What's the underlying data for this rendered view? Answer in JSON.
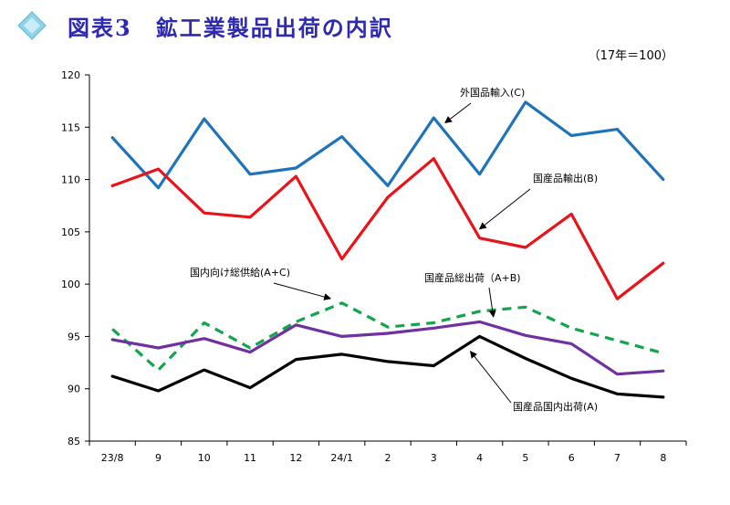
{
  "header": {
    "title": "図表3　鉱工業製品出荷の内訳",
    "unit": "（17年＝100）",
    "icon": "diamond-icon",
    "title_color": "#2e2ab0",
    "icon_color": "#8fd3ea"
  },
  "chart_data": {
    "type": "line",
    "categories": [
      "23/8",
      "9",
      "10",
      "11",
      "12",
      "24/1",
      "2",
      "3",
      "4",
      "5",
      "6",
      "7",
      "8"
    ],
    "ylim": [
      85,
      120
    ],
    "yticks": [
      85,
      90,
      95,
      100,
      105,
      110,
      115,
      120
    ],
    "grid": false,
    "series": [
      {
        "name": "外国品輸入(C)",
        "color": "#1f73b8",
        "dash": false,
        "values": [
          114.0,
          109.2,
          115.8,
          110.5,
          111.1,
          114.1,
          109.4,
          115.9,
          110.5,
          117.4,
          114.2,
          114.8,
          110.0
        ]
      },
      {
        "name": "国産品輸出(B)",
        "color": "#e8141c",
        "dash": false,
        "values": [
          109.4,
          111.0,
          106.8,
          106.4,
          110.3,
          102.4,
          108.3,
          112.0,
          104.4,
          103.5,
          106.7,
          98.6,
          102.0
        ]
      },
      {
        "name": "国内向け総供給(A+C)",
        "color": "#12a64a",
        "dash": true,
        "values": [
          95.7,
          91.8,
          96.3,
          93.9,
          96.4,
          98.2,
          95.9,
          96.3,
          97.4,
          97.8,
          95.8,
          94.6,
          93.4
        ]
      },
      {
        "name": "国産品総出荷(A+B)",
        "color": "#7030a0",
        "dash": false,
        "values": [
          94.7,
          93.9,
          94.8,
          93.5,
          96.1,
          95.0,
          95.3,
          95.8,
          96.4,
          95.1,
          94.3,
          91.4,
          91.7
        ]
      },
      {
        "name": "国産品国内出荷(A)",
        "color": "#000000",
        "dash": false,
        "values": [
          91.2,
          89.8,
          91.8,
          90.1,
          92.8,
          93.3,
          92.6,
          92.2,
          95.0,
          92.9,
          91.0,
          89.5,
          89.2
        ]
      }
    ],
    "annotations": [
      {
        "text": "外国品輸入(C)",
        "series": 0
      },
      {
        "text": "国産品輸出(B)",
        "series": 1
      },
      {
        "text": "国内向け総供給(A+C)",
        "series": 2
      },
      {
        "text": "国産品総出荷（A+B)",
        "series": 3
      },
      {
        "text": "国産品国内出荷(A)",
        "series": 4
      }
    ]
  }
}
